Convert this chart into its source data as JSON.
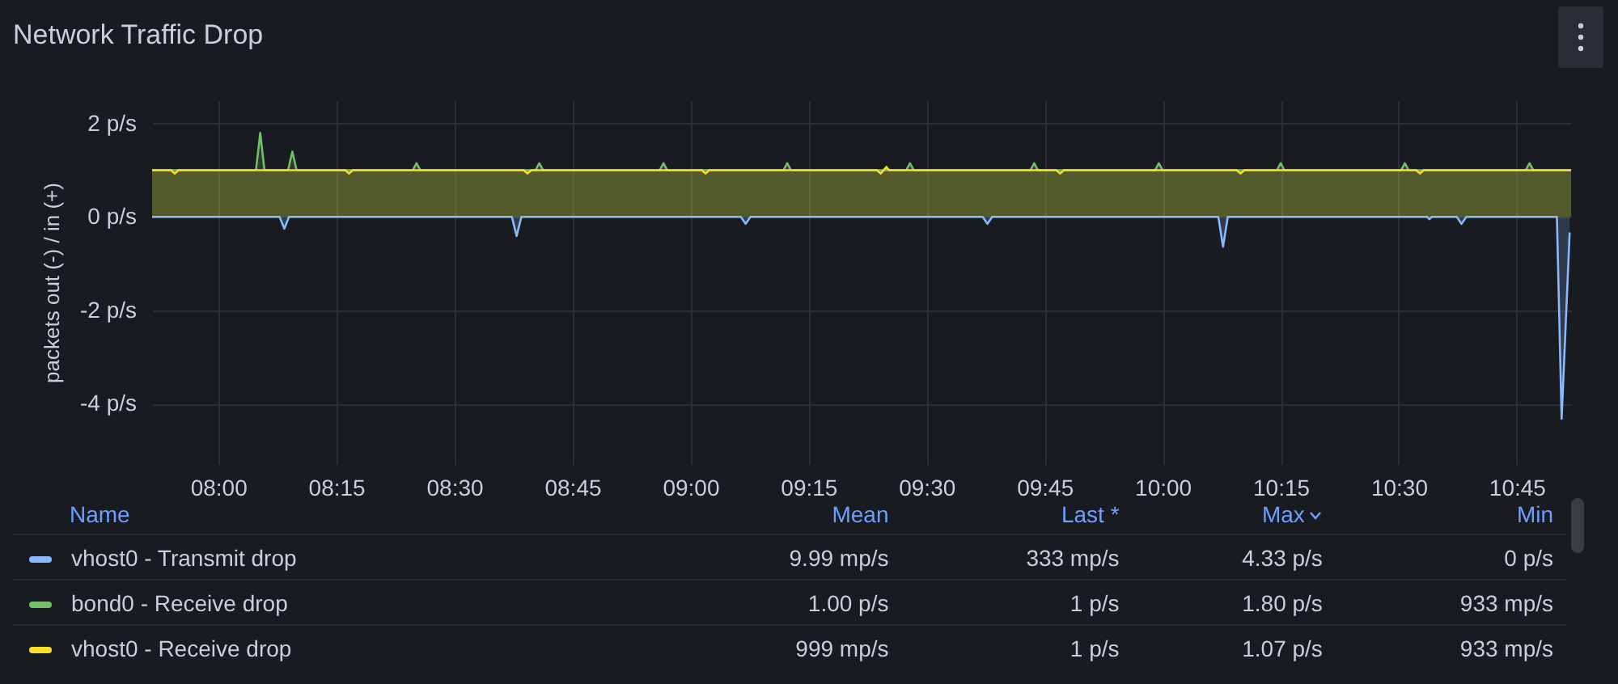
{
  "chart_data": {
    "type": "area",
    "title": "Network Traffic Drop",
    "ylabel": "packets out (-) / in (+)",
    "xlim": [
      7.86,
      10.865
    ],
    "xticks": [
      {
        "value": 8,
        "label": "08:00"
      },
      {
        "value": 8.25,
        "label": "08:15"
      },
      {
        "value": 8.5,
        "label": "08:30"
      },
      {
        "value": 8.75,
        "label": "08:45"
      },
      {
        "value": 9,
        "label": "09:00"
      },
      {
        "value": 9.25,
        "label": "09:15"
      },
      {
        "value": 9.5,
        "label": "09:30"
      },
      {
        "value": 9.75,
        "label": "09:45"
      },
      {
        "value": 10,
        "label": "10:00"
      },
      {
        "value": 10.25,
        "label": "10:15"
      },
      {
        "value": 10.5,
        "label": "10:30"
      },
      {
        "value": 10.75,
        "label": "10:45"
      }
    ],
    "ylim": [
      -5.3,
      2.5
    ],
    "yticks": [
      {
        "value": -4,
        "label": "-4 p/s"
      },
      {
        "value": -2,
        "label": "-2 p/s"
      },
      {
        "value": 0,
        "label": "0 p/s"
      },
      {
        "value": 2,
        "label": "2 p/s"
      }
    ],
    "grid": true,
    "legend": "bottom",
    "marker": "none",
    "line_style": "solid",
    "series": [
      {
        "name": "vhost0 - Transmit drop",
        "color": "#8ab8ff",
        "x": [
          7.86,
          8.13,
          8.14,
          8.15,
          8.622,
          8.632,
          8.642,
          9.107,
          9.117,
          9.127,
          9.619,
          9.629,
          9.639,
          10.118,
          10.128,
          10.138,
          10.56,
          10.565,
          10.57,
          10.623,
          10.633,
          10.643,
          10.835,
          10.845,
          10.862
        ],
        "values": [
          0,
          0,
          -0.25,
          0,
          0,
          -0.41,
          0,
          0,
          -0.15,
          0,
          0,
          -0.15,
          0,
          0,
          -0.64,
          0,
          0,
          -0.05,
          0,
          0,
          -0.15,
          0,
          0,
          -4.33,
          -0.333
        ]
      },
      {
        "name": "bond0 - Receive drop",
        "color": "#73bf69",
        "x": [
          7.86,
          8.08,
          8.089,
          8.098,
          8.148,
          8.157,
          8.166,
          8.412,
          8.42,
          8.428,
          8.672,
          8.68,
          8.688,
          8.935,
          8.943,
          8.951,
          9.197,
          9.205,
          9.213,
          9.457,
          9.465,
          9.473,
          9.72,
          9.728,
          9.736,
          9.984,
          9.992,
          10,
          10.242,
          10.25,
          10.258,
          10.505,
          10.513,
          10.521,
          10.769,
          10.777,
          10.785,
          10.865
        ],
        "values": [
          1,
          1,
          1.8,
          1,
          1,
          1.4,
          1,
          1,
          1.15,
          1,
          1,
          1.15,
          1,
          1,
          1.15,
          1,
          1,
          1.15,
          1,
          1,
          1.15,
          1,
          1,
          1.15,
          1,
          1,
          1.15,
          1,
          1,
          1.15,
          1,
          1,
          1.15,
          1,
          1,
          1.15,
          1,
          1
        ]
      },
      {
        "name": "vhost0 - Receive drop",
        "color": "#fade2a",
        "x": [
          7.86,
          7.9,
          7.908,
          7.916,
          8.269,
          8.277,
          8.285,
          8.647,
          8.655,
          8.663,
          9.024,
          9.032,
          9.04,
          9.395,
          9.403,
          9.409,
          9.415,
          9.421,
          9.775,
          9.783,
          9.791,
          10.157,
          10.165,
          10.173,
          10.537,
          10.545,
          10.553,
          10.865
        ],
        "values": [
          1,
          1,
          0.93,
          1,
          1,
          0.93,
          1,
          1,
          0.93,
          1,
          1,
          0.93,
          1,
          1,
          0.93,
          1,
          1.07,
          1,
          1,
          0.93,
          1,
          1,
          0.93,
          1,
          1,
          0.93,
          1,
          1
        ]
      }
    ],
    "annotations": [
      "Name",
      "Mean",
      "Last *",
      "Max",
      "Min",
      "9.99 mp/s",
      "333 mp/s",
      "4.33 p/s",
      "0 p/s",
      "1.00 p/s",
      "1 p/s",
      "1.80 p/s",
      "933 mp/s",
      "999 mp/s",
      "1 p/s",
      "1.07 p/s",
      "933 mp/s"
    ]
  }
}
